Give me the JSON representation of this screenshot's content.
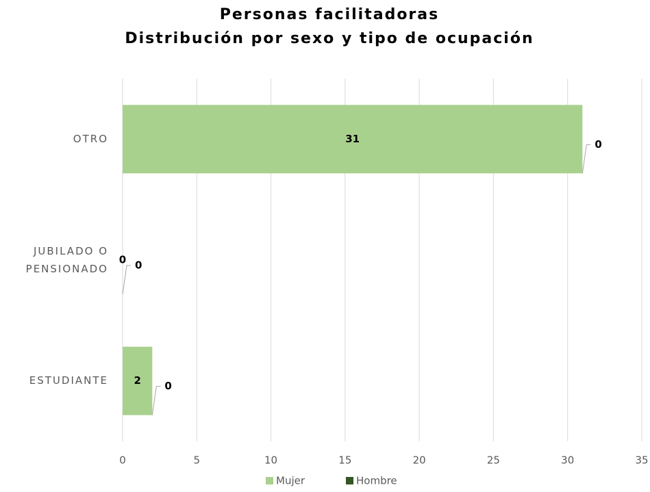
{
  "chart_data": {
    "type": "stacked_barh",
    "title": "Personas facilitadoras",
    "subtitle": "Distribución por sexo y tipo de ocupación",
    "categories": [
      "OTRO",
      "JUBILADO O PENSIONADO",
      "ESTUDIANTE"
    ],
    "series": [
      {
        "name": "Mujer",
        "color": "#a9d18e",
        "values": [
          31,
          0,
          2
        ]
      },
      {
        "name": "Hombre",
        "color": "#375623",
        "values": [
          0,
          0,
          0
        ]
      }
    ],
    "xlim": [
      0,
      35
    ],
    "xticks": [
      0,
      5,
      10,
      15,
      20,
      25,
      30,
      35
    ],
    "grid": true,
    "legend": "bottom"
  }
}
